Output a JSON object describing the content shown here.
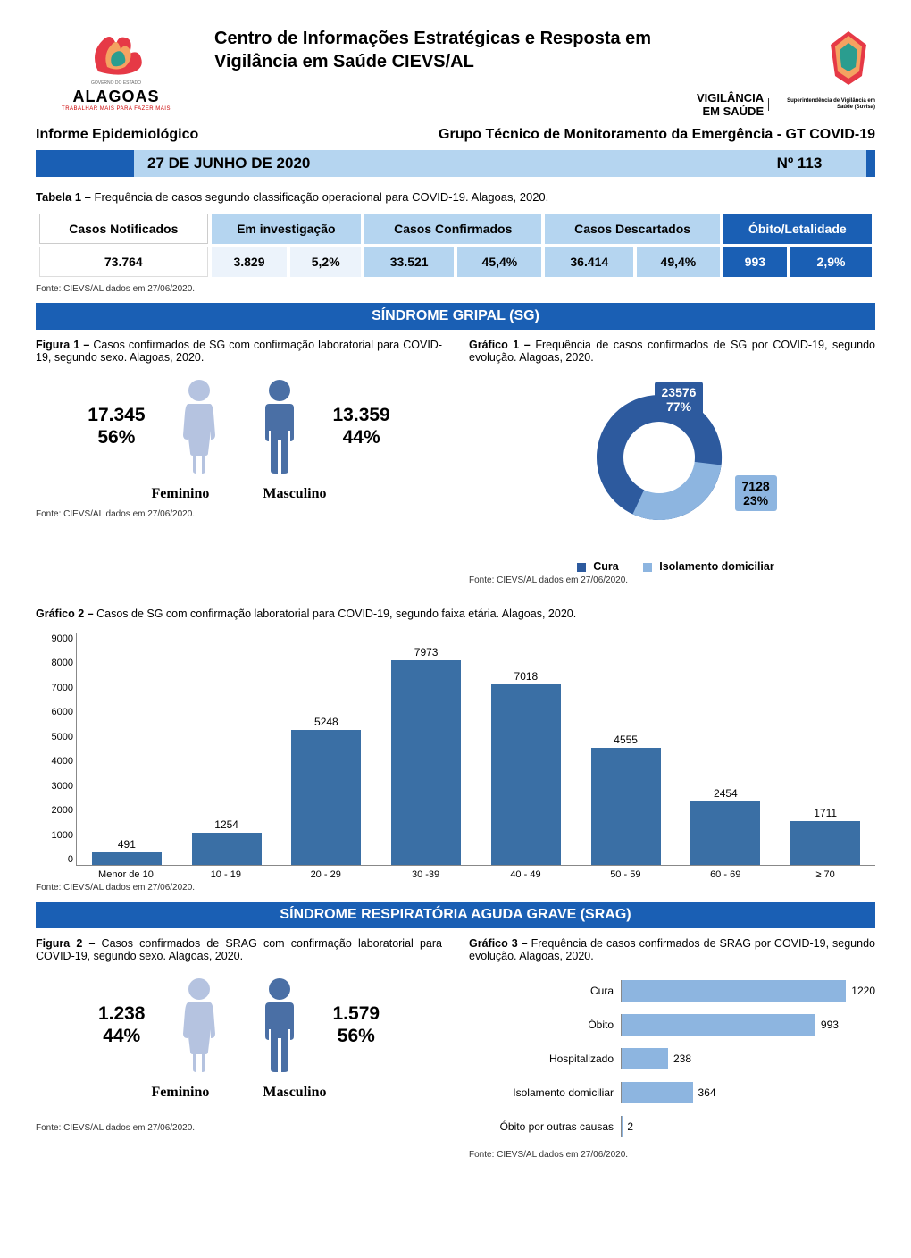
{
  "header": {
    "center_title": "Centro de Informações Estratégicas e Resposta em Vigilância em Saúde CIEVS/AL",
    "left_logo_main": "ALAGOAS",
    "left_logo_sub": "TRABALHAR MAIS PARA FAZER MAIS",
    "left_logo_gov": "GOVERNO DO ESTADO",
    "right_logo_main_1": "VIGILÂNCIA",
    "right_logo_main_2": "EM SAÚDE",
    "right_logo_sub": "Superintendência de Vigilância em Saúde (Suvisa)",
    "informe": "Informe Epidemiológico",
    "grupo": "Grupo Técnico de Monitoramento da Emergência - GT COVID-19"
  },
  "date_bar": {
    "date": "27 DE JUNHO DE 2020",
    "number": "Nº 113",
    "accent_color": "#1a5fb4",
    "bg_color": "#b5d5f0"
  },
  "table1": {
    "caption_prefix": "Tabela 1 – ",
    "caption": "Frequência de casos segundo classificação operacional para COVID-19. Alagoas, 2020.",
    "headers": [
      "Casos Notificados",
      "Em investigação",
      "Casos Confirmados",
      "Casos Descartados",
      "Óbito/Letalidade"
    ],
    "row": {
      "notificados": "73.764",
      "investigacao_n": "3.829",
      "investigacao_pct": "5,2%",
      "confirmados_n": "33.521",
      "confirmados_pct": "45,4%",
      "descartados_n": "36.414",
      "descartados_pct": "49,4%",
      "obitos_n": "993",
      "obitos_pct": "2,9%"
    },
    "fonte": "Fonte: CIEVS/AL dados em 27/06/2020."
  },
  "section_sg": {
    "title": "SÍNDROME GRIPAL (SG)",
    "fig1": {
      "caption_prefix": "Figura 1 – ",
      "caption": "Casos confirmados de SG com confirmação laboratorial para COVID-19, segundo sexo. Alagoas, 2020.",
      "feminino_n": "17.345",
      "feminino_pct": "56%",
      "masculino_n": "13.359",
      "masculino_pct": "44%",
      "feminino_label": "Feminino",
      "masculino_label": "Masculino",
      "feminino_color": "#b5c3e0",
      "masculino_color": "#4a6fa5",
      "fonte": "Fonte: CIEVS/AL dados em 27/06/2020."
    },
    "graf1": {
      "caption_prefix": "Gráfico 1 – ",
      "caption": "Frequência de casos confirmados de SG por COVID-19, segundo evolução. Alagoas, 2020.",
      "type": "donut",
      "slices": [
        {
          "label": "Cura",
          "value": 23576,
          "pct": "77%",
          "color": "#2d5a9e"
        },
        {
          "label": "Isolamento domiciliar",
          "value": 7128,
          "pct": "23%",
          "color": "#8db5e0"
        }
      ],
      "legend_prefix": "■",
      "fonte": "Fonte: CIEVS/AL dados em 27/06/2020."
    },
    "graf2": {
      "caption_prefix": "Gráfico 2 – ",
      "caption": "Casos de SG com confirmação laboratorial para COVID-19, segundo faixa etária. Alagoas, 2020.",
      "type": "bar",
      "categories": [
        "Menor de 10",
        "10 - 19",
        "20 - 29",
        "30 -39",
        "40 - 49",
        "50 - 59",
        "60 - 69",
        "≥ 70"
      ],
      "values": [
        491,
        1254,
        5248,
        7973,
        7018,
        4555,
        2454,
        1711
      ],
      "bar_color": "#3a6fa5",
      "ylim": [
        0,
        9000
      ],
      "ytick_step": 1000,
      "yticks": [
        "9000",
        "8000",
        "7000",
        "6000",
        "5000",
        "4000",
        "3000",
        "2000",
        "1000",
        "0"
      ],
      "fonte": "Fonte: CIEVS/AL dados em 27/06/2020."
    }
  },
  "section_srag": {
    "title": "SÍNDROME RESPIRATÓRIA AGUDA GRAVE (SRAG)",
    "fig2": {
      "caption_prefix": "Figura 2 – ",
      "caption": "Casos confirmados de SRAG com confirmação laboratorial para COVID-19, segundo sexo. Alagoas, 2020.",
      "feminino_n": "1.238",
      "feminino_pct": "44%",
      "masculino_n": "1.579",
      "masculino_pct": "56%",
      "feminino_label": "Feminino",
      "masculino_label": "Masculino",
      "feminino_color": "#b5c3e0",
      "masculino_color": "#4a6fa5",
      "fonte": "Fonte: CIEVS/AL dados em 27/06/2020."
    },
    "graf3": {
      "caption_prefix": "Gráfico 3 – ",
      "caption": "Frequência de casos confirmados de SRAG por COVID-19, segundo evolução. Alagoas, 2020.",
      "type": "hbar",
      "categories": [
        "Cura",
        "Óbito",
        "Hospitalizado",
        "Isolamento domiciliar",
        "Óbito por outras causas"
      ],
      "values": [
        1220,
        993,
        238,
        364,
        2
      ],
      "bar_color": "#8db5e0",
      "xmax": 1300,
      "fonte": "Fonte: CIEVS/AL dados em 27/06/2020."
    }
  }
}
